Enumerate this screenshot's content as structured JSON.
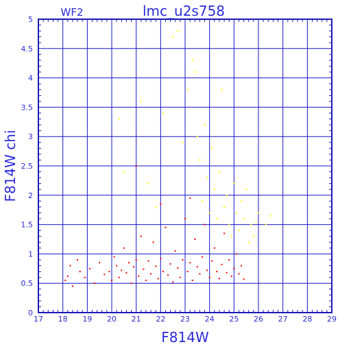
{
  "chart_data": {
    "type": "scatter",
    "title": "lmc_u2s758",
    "subtitle": "WF2",
    "xlabel": "F814W",
    "ylabel": "F814W  chi",
    "xlim": [
      17,
      29
    ],
    "ylim": [
      0,
      5
    ],
    "x_ticks": [
      "17",
      "18",
      "19",
      "20",
      "21",
      "22",
      "23",
      "24",
      "25",
      "26",
      "27",
      "28",
      "29"
    ],
    "y_ticks": [
      "0",
      "0.5",
      "1",
      "1.5",
      "2",
      "2.5",
      "3",
      "3.5",
      "4",
      "4.5",
      "5"
    ],
    "grid": true,
    "colors": {
      "axis": "#1a1ab4",
      "grid": "#1414c8",
      "text": "#2a2ad8",
      "red": "#f20000",
      "yellow": "#ffff00"
    },
    "series": [
      {
        "color": "#f20000",
        "points": [
          [
            18.1,
            0.55
          ],
          [
            18.2,
            0.62
          ],
          [
            18.3,
            0.8
          ],
          [
            18.4,
            0.45
          ],
          [
            18.6,
            0.9
          ],
          [
            18.7,
            0.7
          ],
          [
            18.9,
            0.6
          ],
          [
            19.1,
            0.75
          ],
          [
            19.3,
            0.5
          ],
          [
            19.5,
            0.85
          ],
          [
            19.7,
            0.65
          ],
          [
            19.9,
            0.7
          ],
          [
            20.0,
            0.55
          ],
          [
            20.1,
            0.95
          ],
          [
            20.2,
            0.8
          ],
          [
            20.3,
            0.6
          ],
          [
            20.4,
            0.72
          ],
          [
            20.5,
            1.1
          ],
          [
            20.6,
            0.68
          ],
          [
            20.7,
            0.85
          ],
          [
            20.8,
            0.5
          ],
          [
            20.9,
            0.78
          ],
          [
            21.0,
            0.9
          ],
          [
            21.1,
            0.62
          ],
          [
            21.2,
            1.3
          ],
          [
            21.3,
            0.74
          ],
          [
            21.4,
            0.55
          ],
          [
            21.5,
            0.88
          ],
          [
            21.6,
            0.66
          ],
          [
            21.7,
            1.2
          ],
          [
            21.8,
            0.79
          ],
          [
            21.9,
            0.58
          ],
          [
            22.0,
            0.92
          ],
          [
            22.1,
            0.7
          ],
          [
            22.2,
            1.45
          ],
          [
            22.3,
            0.64
          ],
          [
            22.4,
            0.83
          ],
          [
            22.5,
            0.52
          ],
          [
            22.6,
            1.05
          ],
          [
            22.7,
            0.76
          ],
          [
            22.8,
            0.6
          ],
          [
            22.9,
            0.9
          ],
          [
            23.0,
            1.6
          ],
          [
            23.1,
            0.7
          ],
          [
            23.2,
            0.85
          ],
          [
            23.3,
            0.55
          ],
          [
            23.4,
            1.25
          ],
          [
            23.5,
            0.78
          ],
          [
            23.6,
            0.66
          ],
          [
            23.7,
            0.95
          ],
          [
            23.8,
            1.5
          ],
          [
            23.9,
            0.72
          ],
          [
            24.0,
            0.6
          ],
          [
            24.1,
            0.88
          ],
          [
            24.2,
            1.1
          ],
          [
            24.3,
            0.7
          ],
          [
            24.4,
            0.58
          ],
          [
            24.5,
            0.82
          ],
          [
            24.6,
            1.35
          ],
          [
            24.7,
            0.68
          ],
          [
            24.8,
            0.9
          ],
          [
            24.9,
            0.62
          ],
          [
            25.0,
            0.75
          ],
          [
            25.1,
            1.0
          ],
          [
            25.2,
            0.66
          ],
          [
            25.3,
            0.8
          ],
          [
            25.4,
            0.57
          ],
          [
            21.0,
            2.5
          ],
          [
            23.2,
            1.95
          ],
          [
            22.0,
            1.85
          ]
        ]
      },
      {
        "color": "#ffff00",
        "points": [
          [
            20.3,
            3.3
          ],
          [
            20.5,
            2.4
          ],
          [
            21.2,
            3.6
          ],
          [
            21.5,
            2.2
          ],
          [
            21.8,
            1.8
          ],
          [
            22.1,
            3.4
          ],
          [
            22.5,
            4.7
          ],
          [
            22.7,
            4.8
          ],
          [
            22.9,
            2.9
          ],
          [
            23.1,
            3.8
          ],
          [
            23.3,
            4.3
          ],
          [
            23.4,
            4.1
          ],
          [
            23.5,
            3.0
          ],
          [
            23.6,
            2.6
          ],
          [
            23.7,
            1.9
          ],
          [
            23.8,
            3.2
          ],
          [
            23.9,
            2.3
          ],
          [
            24.0,
            1.7
          ],
          [
            24.1,
            2.8
          ],
          [
            24.2,
            2.1
          ],
          [
            24.3,
            1.6
          ],
          [
            24.4,
            2.4
          ],
          [
            24.5,
            3.8
          ],
          [
            24.6,
            1.8
          ],
          [
            24.7,
            2.0
          ],
          [
            24.8,
            1.5
          ],
          [
            24.9,
            1.3
          ],
          [
            25.0,
            2.2
          ],
          [
            25.1,
            1.7
          ],
          [
            25.2,
            1.4
          ],
          [
            25.3,
            1.9
          ],
          [
            25.4,
            1.6
          ],
          [
            25.5,
            2.1
          ],
          [
            25.6,
            1.2
          ],
          [
            25.7,
            1.5
          ],
          [
            25.8,
            1.3
          ],
          [
            25.9,
            1.55
          ],
          [
            26.0,
            1.7
          ],
          [
            26.3,
            1.5
          ],
          [
            26.5,
            1.65
          ]
        ]
      }
    ]
  }
}
